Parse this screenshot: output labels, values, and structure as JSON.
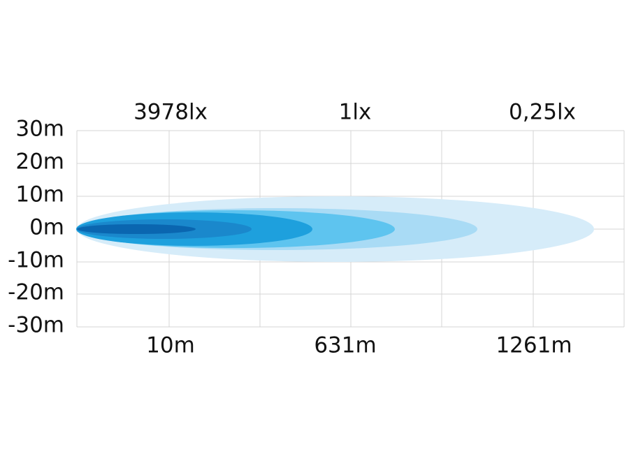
{
  "y_labels": [
    "30m",
    "20m",
    "10m",
    "0m",
    "-10m",
    "-20m",
    "-30m"
  ],
  "top_labels": [
    "3978lx",
    "1lx",
    "0,25lx"
  ],
  "bottom_labels": [
    "10m",
    "631m",
    "1261m"
  ]
}
